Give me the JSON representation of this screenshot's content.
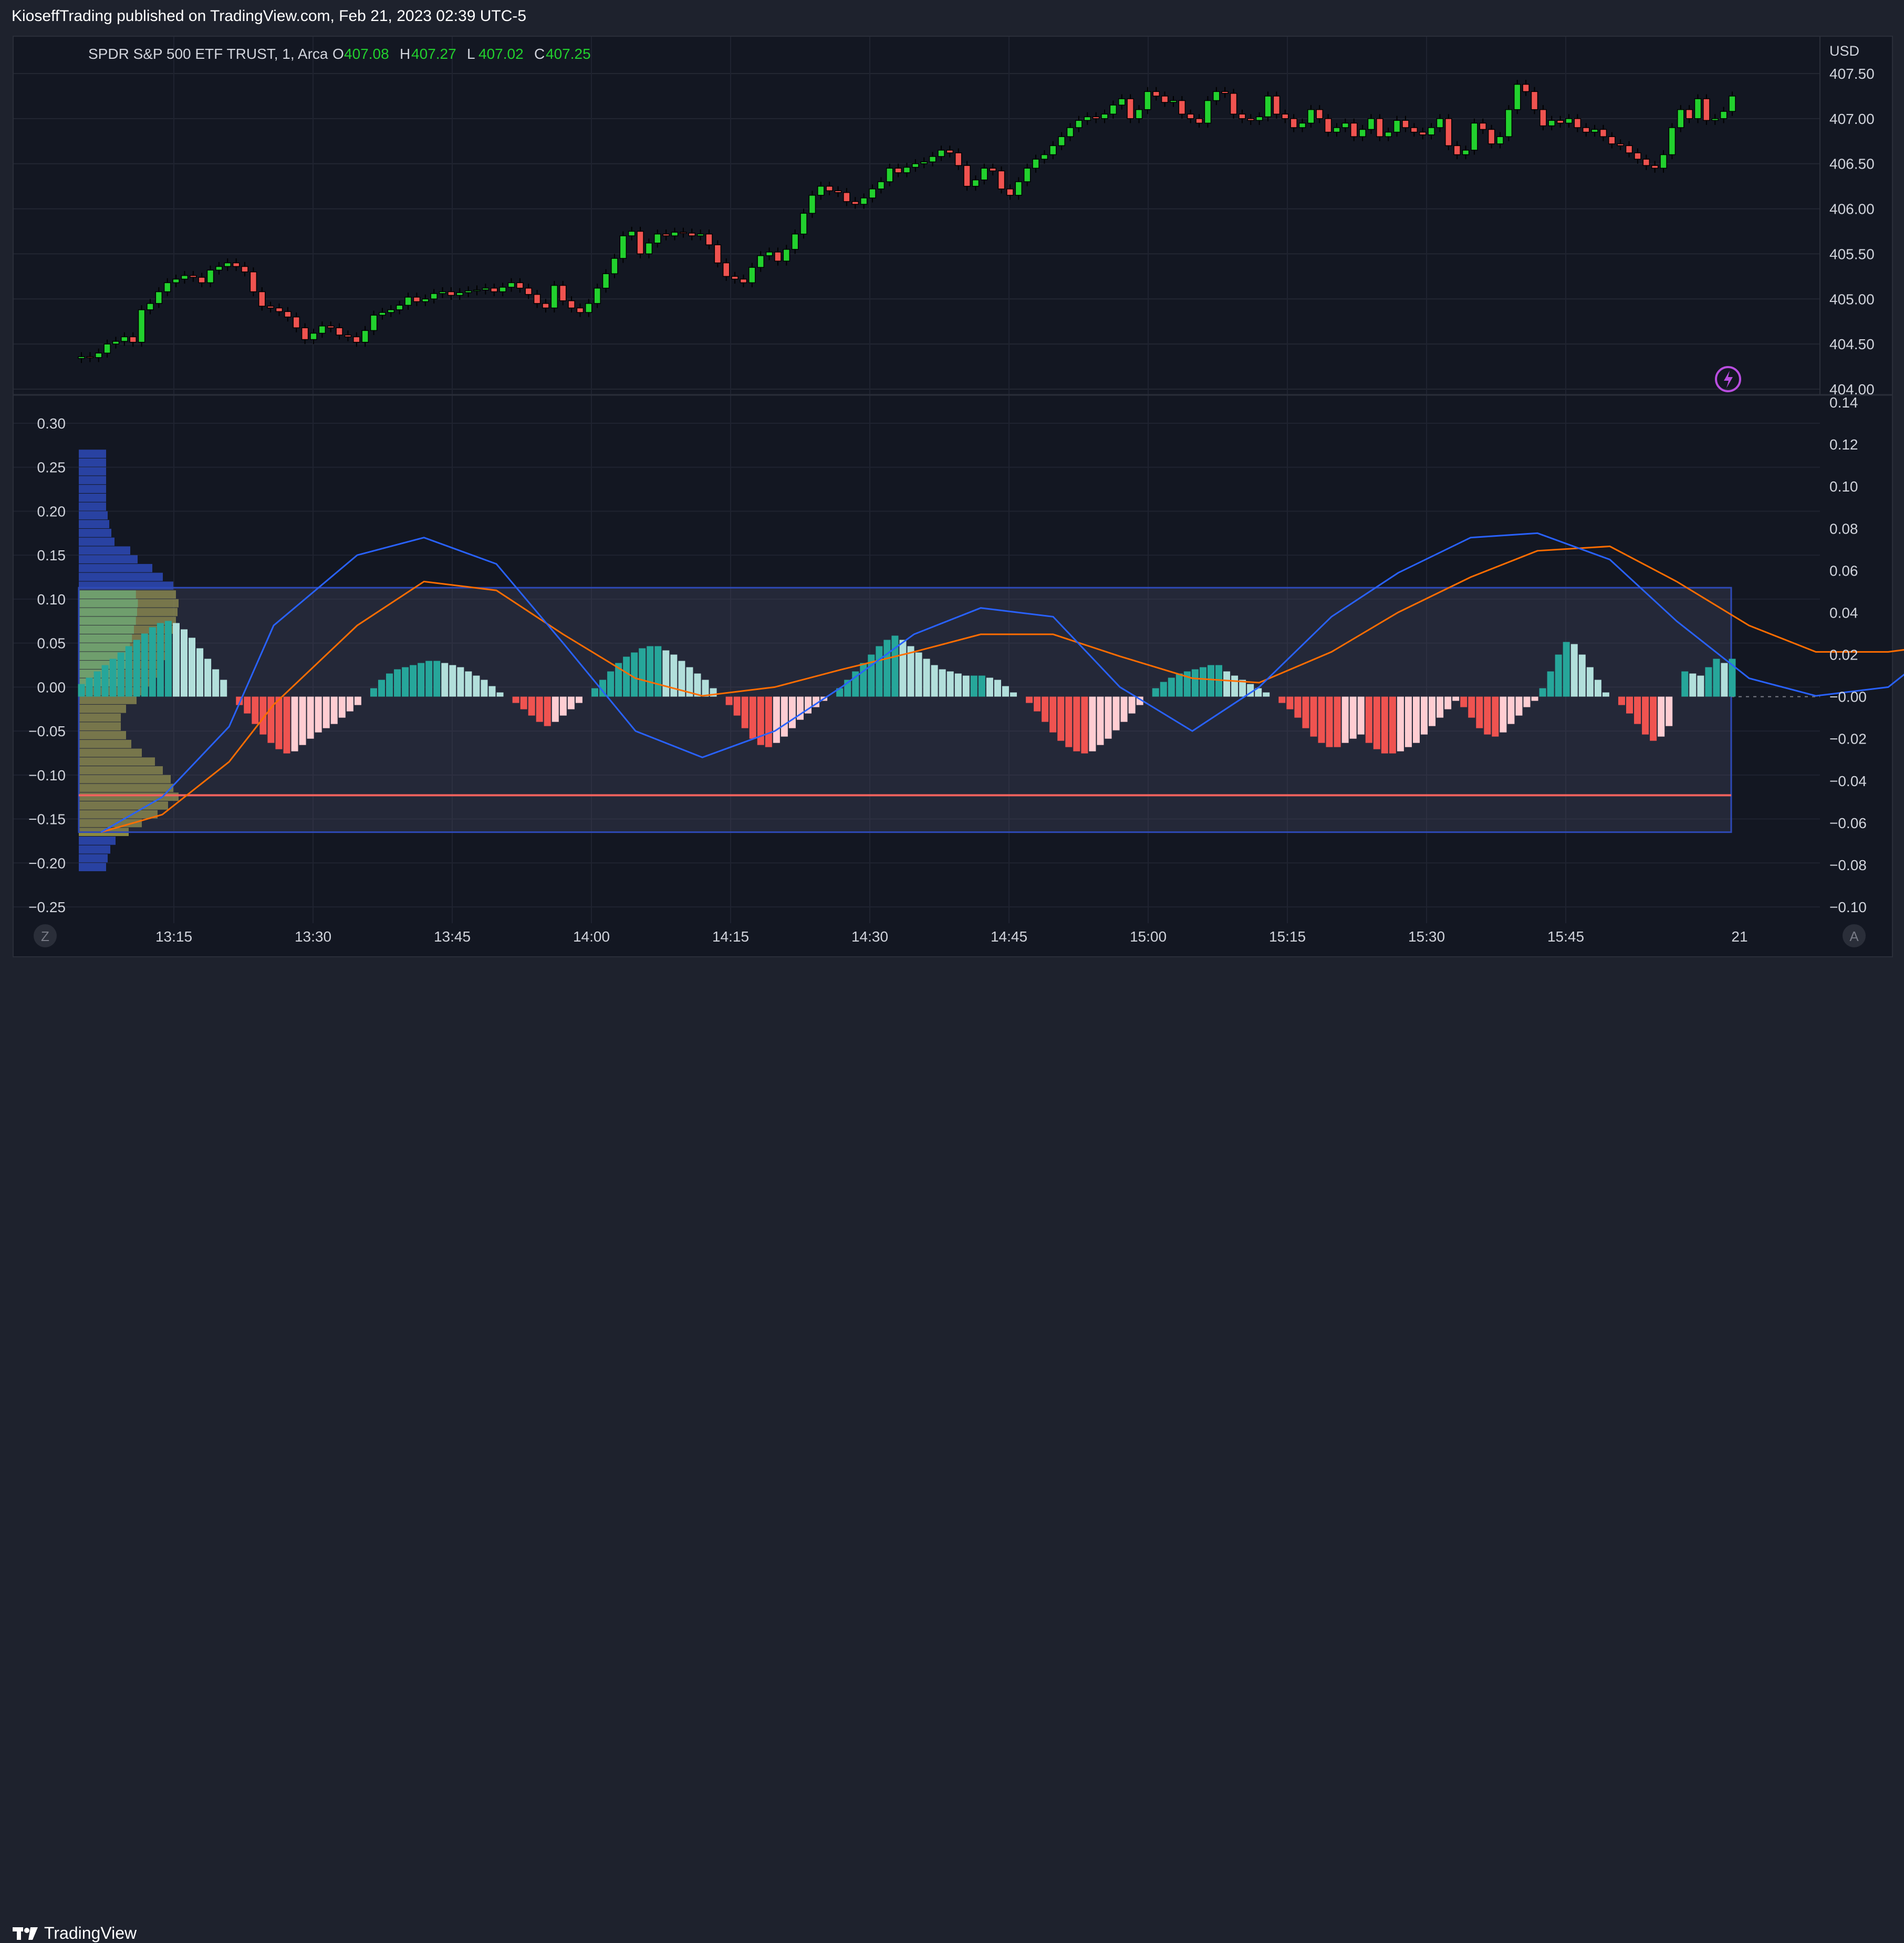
{
  "publish_line": "KioseffTrading published on TradingView.com, Feb 21, 2023 02:39 UTC-5",
  "footer": {
    "brand": "TradingView"
  },
  "colors": {
    "up": "#26a69a",
    "up_bright": "#22d12e",
    "down": "#ef5350",
    "macd": "#2962ff",
    "signal": "#ff6d00",
    "hist_up_strong": "#26a69a",
    "hist_up_weak": "#b2dfdb",
    "hist_down_strong": "#ef5350",
    "hist_down_weak": "#ffcdd2",
    "profile_blue": "#2e4ab8",
    "profile_yellow": "#b5b24a",
    "profile_green": "#7ed37e",
    "poc_line": "#f0625d",
    "box_fill": "#4a4f66"
  },
  "price_pane": {
    "symbol_label": "SPDR S&P 500 ETF TRUST, 1, Arca",
    "ohlc": [
      {
        "key": "O",
        "value": "407.08"
      },
      {
        "key": "H",
        "value": "407.27"
      },
      {
        "key": "L",
        "value": "407.02"
      },
      {
        "key": "C",
        "value": "407.25"
      }
    ],
    "currency": "USD",
    "y_ticks": [
      "407.50",
      "407.00",
      "406.50",
      "406.00",
      "405.50",
      "405.00",
      "404.50",
      "404.00"
    ],
    "y_tick_values": [
      407.5,
      407.0,
      406.5,
      406.0,
      405.5,
      405.0,
      404.5,
      404.0
    ],
    "ylim": [
      404.0,
      407.5
    ],
    "icon": "lightning-icon"
  },
  "osc_pane": {
    "left_ticks": [
      "0.30",
      "0.25",
      "0.20",
      "0.15",
      "0.10",
      "0.05",
      "0.00",
      "−0.05",
      "−0.10",
      "−0.15",
      "−0.20",
      "−0.25"
    ],
    "left_values": [
      0.3,
      0.25,
      0.2,
      0.15,
      0.1,
      0.05,
      0.0,
      -0.05,
      -0.1,
      -0.15,
      -0.2,
      -0.25
    ],
    "right_ticks": [
      "0.14",
      "0.12",
      "0.10",
      "0.08",
      "0.06",
      "0.04",
      "0.02",
      "−0.00",
      "−0.02",
      "−0.04",
      "−0.06",
      "−0.08",
      "−0.10"
    ],
    "right_values": [
      0.14,
      0.12,
      0.1,
      0.08,
      0.06,
      0.04,
      0.02,
      0.0,
      -0.02,
      -0.04,
      -0.06,
      -0.08,
      -0.1
    ],
    "box_range_left": [
      -0.165,
      0.113
    ],
    "poc_left": -0.123
  },
  "x_axis": {
    "labels": [
      "13:15",
      "13:30",
      "13:45",
      "14:00",
      "14:15",
      "14:30",
      "14:45",
      "15:00",
      "15:15",
      "15:30",
      "15:45",
      "21"
    ],
    "z_button": "Z",
    "a_button": "A"
  },
  "chart_data": [
    {
      "type": "candlestick",
      "title": "SPDR S&P 500 ETF TRUST, 1, Arca",
      "ylabel": "USD",
      "x_start": "13:02",
      "x_end": "16:00",
      "ylim": [
        404.0,
        407.5
      ],
      "close": [
        404.36,
        404.35,
        404.4,
        404.5,
        404.53,
        404.58,
        404.52,
        404.88,
        404.95,
        405.08,
        405.18,
        405.22,
        405.26,
        405.24,
        405.18,
        405.32,
        405.36,
        405.4,
        405.36,
        405.3,
        405.08,
        404.92,
        404.9,
        404.86,
        404.8,
        404.68,
        404.55,
        404.62,
        404.7,
        404.68,
        404.6,
        404.58,
        404.52,
        404.65,
        404.82,
        404.85,
        404.88,
        404.93,
        405.02,
        404.97,
        405.0,
        405.06,
        405.08,
        405.04,
        405.07,
        405.09,
        405.1,
        405.12,
        405.08,
        405.13,
        405.18,
        405.12,
        405.05,
        404.95,
        404.9,
        405.15,
        404.98,
        404.9,
        404.85,
        404.95,
        405.12,
        405.28,
        405.45,
        405.7,
        405.75,
        405.5,
        405.62,
        405.72,
        405.7,
        405.74,
        405.73,
        405.7,
        405.72,
        405.6,
        405.4,
        405.25,
        405.22,
        405.18,
        405.35,
        405.48,
        405.52,
        405.42,
        405.55,
        405.72,
        405.95,
        406.15,
        406.25,
        406.2,
        406.18,
        406.08,
        406.05,
        406.12,
        406.22,
        406.3,
        406.45,
        406.4,
        406.46,
        406.5,
        406.52,
        406.58,
        406.65,
        406.62,
        406.48,
        406.25,
        406.32,
        406.45,
        406.42,
        406.22,
        406.15,
        406.3,
        406.45,
        406.55,
        406.6,
        406.7,
        406.8,
        406.9,
        406.98,
        407.02,
        407.0,
        407.05,
        407.15,
        407.22,
        407.0,
        407.1,
        407.3,
        407.25,
        407.18,
        407.2,
        407.05,
        407.0,
        406.95,
        407.2,
        407.3,
        407.28,
        407.05,
        407.0,
        406.98,
        407.02,
        407.25,
        407.05,
        407.0,
        406.9,
        406.95,
        407.1,
        407.0,
        406.85,
        406.9,
        406.95,
        406.8,
        406.88,
        407.0,
        406.8,
        406.85,
        406.98,
        406.9,
        406.85,
        406.82,
        406.9,
        407.0,
        406.7,
        406.6,
        406.65,
        406.95,
        406.88,
        406.72,
        406.8,
        407.1,
        407.38,
        407.3,
        407.1,
        406.92,
        406.98,
        406.95,
        407.0,
        406.9,
        406.85,
        406.88,
        406.8,
        406.72,
        406.7,
        406.62,
        406.55,
        406.48,
        406.45,
        406.6,
        406.9,
        407.1,
        407.0,
        407.22,
        406.98,
        407.0,
        407.08,
        407.25
      ]
    },
    {
      "type": "bar",
      "title": "Histogram",
      "x_start": "13:02",
      "x_end": "16:00",
      "ylim": [
        -0.1,
        0.14
      ],
      "values": [
        0.006,
        0.009,
        0.012,
        0.015,
        0.018,
        0.021,
        0.024,
        0.027,
        0.03,
        0.033,
        0.035,
        0.036,
        0.035,
        0.032,
        0.028,
        0.023,
        0.018,
        0.013,
        0.008,
        0.0,
        -0.004,
        -0.008,
        -0.013,
        -0.018,
        -0.022,
        -0.025,
        -0.027,
        -0.026,
        -0.023,
        -0.02,
        -0.017,
        -0.015,
        -0.013,
        -0.01,
        -0.007,
        -0.004,
        0.0,
        0.004,
        0.008,
        0.011,
        0.013,
        0.014,
        0.015,
        0.016,
        0.017,
        0.017,
        0.016,
        0.015,
        0.014,
        0.012,
        0.01,
        0.008,
        0.005,
        0.002,
        0.0,
        -0.003,
        -0.006,
        -0.009,
        -0.012,
        -0.014,
        -0.012,
        -0.009,
        -0.006,
        -0.003,
        0.0,
        0.004,
        0.008,
        0.012,
        0.016,
        0.019,
        0.021,
        0.023,
        0.024,
        0.024,
        0.022,
        0.02,
        0.017,
        0.014,
        0.011,
        0.008,
        0.004,
        0.0,
        -0.004,
        -0.009,
        -0.015,
        -0.02,
        -0.023,
        -0.024,
        -0.022,
        -0.019,
        -0.015,
        -0.011,
        -0.008,
        -0.005,
        -0.002,
        0.0,
        0.004,
        0.008,
        0.012,
        0.016,
        0.02,
        0.024,
        0.027,
        0.029,
        0.027,
        0.024,
        0.021,
        0.018,
        0.015,
        0.013,
        0.012,
        0.011,
        0.01,
        0.01,
        0.01,
        0.009,
        0.008,
        0.005,
        0.002,
        0.0,
        -0.003,
        -0.007,
        -0.012,
        -0.017,
        -0.021,
        -0.024,
        -0.026,
        -0.027,
        -0.026,
        -0.023,
        -0.02,
        -0.016,
        -0.012,
        -0.008,
        -0.004,
        0.0,
        0.004,
        0.007,
        0.009,
        0.011,
        0.012,
        0.013,
        0.014,
        0.015,
        0.015,
        0.012,
        0.01,
        0.008,
        0.006,
        0.004,
        0.002,
        0.0,
        -0.003,
        -0.006,
        -0.01,
        -0.015,
        -0.019,
        -0.022,
        -0.024,
        -0.024,
        -0.022,
        -0.02,
        -0.018,
        -0.022,
        -0.025,
        -0.027,
        -0.027,
        -0.026,
        -0.024,
        -0.022,
        -0.018,
        -0.014,
        -0.01,
        -0.006,
        -0.002,
        -0.005,
        -0.01,
        -0.015,
        -0.018,
        -0.019,
        -0.017,
        -0.013,
        -0.009,
        -0.005,
        -0.002,
        0.004,
        0.012,
        0.02,
        0.026,
        0.025,
        0.02,
        0.014,
        0.008,
        0.002,
        0.0,
        -0.004,
        -0.008,
        -0.013,
        -0.018,
        -0.021,
        -0.019,
        -0.014,
        0.0,
        0.012,
        0.011,
        0.01,
        0.014,
        0.018,
        0.016,
        0.018
      ]
    },
    {
      "type": "line",
      "series": [
        {
          "name": "MACD",
          "points": [
            [
              13.04,
              -0.165
            ],
            [
              13.15,
              -0.125
            ],
            [
              13.27,
              -0.045
            ],
            [
              13.35,
              0.07
            ],
            [
              13.5,
              0.15
            ],
            [
              13.62,
              0.17
            ],
            [
              13.75,
              0.14
            ],
            [
              13.87,
              0.05
            ],
            [
              14.0,
              -0.05
            ],
            [
              14.12,
              -0.08
            ],
            [
              14.25,
              -0.05
            ],
            [
              14.37,
              0.0
            ],
            [
              14.5,
              0.06
            ],
            [
              14.62,
              0.09
            ],
            [
              14.75,
              0.08
            ],
            [
              14.87,
              0.0
            ],
            [
              15.0,
              -0.05
            ],
            [
              15.12,
              0.0
            ],
            [
              15.25,
              0.08
            ],
            [
              15.37,
              0.13
            ],
            [
              15.5,
              0.17
            ],
            [
              15.62,
              0.175
            ],
            [
              15.75,
              0.145
            ],
            [
              15.87,
              0.075
            ],
            [
              16.0,
              0.01
            ],
            [
              16.12,
              -0.01
            ],
            [
              16.25,
              0.0
            ],
            [
              16.37,
              0.06
            ],
            [
              16.5,
              0.12
            ],
            [
              16.62,
              0.135
            ],
            [
              16.75,
              0.14
            ],
            [
              16.87,
              0.095
            ],
            [
              17.0,
              0.03
            ],
            [
              17.12,
              -0.03
            ],
            [
              17.25,
              -0.08
            ],
            [
              17.37,
              -0.12
            ],
            [
              17.5,
              -0.12
            ],
            [
              17.62,
              -0.07
            ],
            [
              17.75,
              -0.05
            ],
            [
              17.87,
              -0.065
            ],
            [
              18.0,
              -0.085
            ],
            [
              18.12,
              -0.055
            ],
            [
              18.25,
              -0.03
            ],
            [
              18.37,
              -0.015
            ]
          ]
        },
        {
          "name": "Signal",
          "points": [
            [
              13.04,
              -0.165
            ],
            [
              13.15,
              -0.145
            ],
            [
              13.27,
              -0.085
            ],
            [
              13.35,
              -0.02
            ],
            [
              13.5,
              0.07
            ],
            [
              13.62,
              0.12
            ],
            [
              13.75,
              0.11
            ],
            [
              13.87,
              0.06
            ],
            [
              14.0,
              0.01
            ],
            [
              14.12,
              -0.01
            ],
            [
              14.25,
              0.0
            ],
            [
              14.37,
              0.02
            ],
            [
              14.5,
              0.04
            ],
            [
              14.62,
              0.06
            ],
            [
              14.75,
              0.06
            ],
            [
              14.87,
              0.035
            ],
            [
              15.0,
              0.01
            ],
            [
              15.12,
              0.005
            ],
            [
              15.25,
              0.04
            ],
            [
              15.37,
              0.085
            ],
            [
              15.5,
              0.125
            ],
            [
              15.62,
              0.155
            ],
            [
              15.75,
              0.16
            ],
            [
              15.87,
              0.12
            ],
            [
              16.0,
              0.07
            ],
            [
              16.12,
              0.04
            ],
            [
              16.25,
              0.04
            ],
            [
              16.37,
              0.05
            ],
            [
              16.5,
              0.085
            ],
            [
              16.62,
              0.11
            ],
            [
              16.75,
              0.12
            ],
            [
              16.87,
              0.11
            ],
            [
              17.0,
              0.075
            ],
            [
              17.12,
              0.04
            ],
            [
              17.25,
              0.0
            ],
            [
              17.37,
              -0.035
            ],
            [
              17.5,
              -0.07
            ],
            [
              17.62,
              -0.08
            ],
            [
              17.75,
              -0.065
            ],
            [
              17.87,
              -0.055
            ],
            [
              18.0,
              -0.06
            ],
            [
              18.12,
              -0.05
            ],
            [
              18.25,
              -0.035
            ],
            [
              18.37,
              -0.025
            ]
          ]
        }
      ]
    },
    {
      "type": "bar",
      "title": "Volume profile",
      "orientation": "horizontal",
      "y": [
        0.265,
        0.255,
        0.245,
        0.235,
        0.225,
        0.215,
        0.205,
        0.195,
        0.185,
        0.175,
        0.165,
        0.155,
        0.145,
        0.135,
        0.125,
        0.115,
        0.105,
        0.095,
        0.085,
        0.075,
        0.065,
        0.055,
        0.045,
        0.035,
        0.025,
        0.015,
        0.005,
        -0.005,
        -0.015,
        -0.025,
        -0.035,
        -0.045,
        -0.055,
        -0.065,
        -0.075,
        -0.085,
        -0.095,
        -0.105,
        -0.115,
        -0.125,
        -0.135,
        -0.145,
        -0.155,
        -0.165,
        -0.175,
        -0.185,
        -0.195,
        -0.205
      ],
      "values": [
        52,
        52,
        52,
        52,
        52,
        52,
        52,
        55,
        58,
        62,
        68,
        98,
        112,
        140,
        160,
        180,
        185,
        190,
        188,
        185,
        180,
        175,
        170,
        165,
        160,
        155,
        145,
        130,
        110,
        90,
        80,
        80,
        90,
        100,
        120,
        145,
        160,
        175,
        180,
        190,
        170,
        150,
        120,
        95,
        70,
        60,
        55,
        52
      ]
    }
  ]
}
